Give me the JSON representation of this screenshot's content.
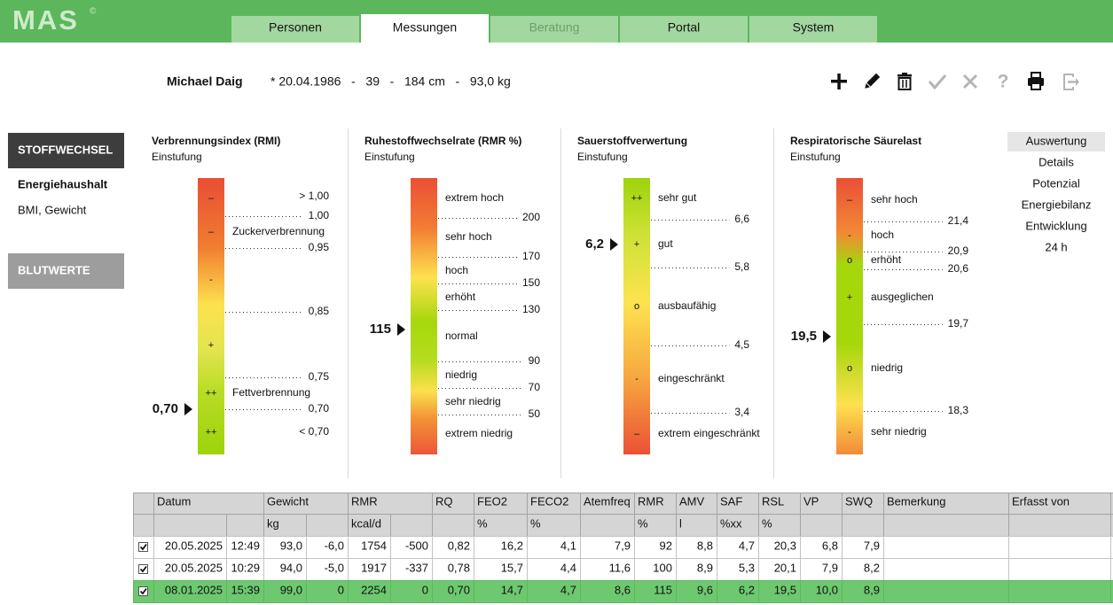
{
  "app": {
    "logo": "MAS",
    "logo_mark": "©",
    "tabs": [
      "Personen",
      "Messungen",
      "Beratung",
      "Portal",
      "System"
    ],
    "active_tab": 1,
    "disabled_tabs": [
      2
    ]
  },
  "patient": {
    "name": "Michael Daig",
    "details": "* 20.04.1986   -   39   -   184 cm   -   93,0 kg"
  },
  "toolbar": {
    "help": "?"
  },
  "sidebar": {
    "sections": [
      {
        "title": "STOFFWECHSEL",
        "items": [
          "Energiehaushalt",
          "BMI, Gewicht"
        ]
      },
      {
        "title": "BLUTWERTE"
      }
    ]
  },
  "subnav": {
    "items": [
      "Auswertung",
      "Details",
      "Potenzial",
      "Energiebilanz",
      "Entwicklung",
      "24 h"
    ],
    "active": 0
  },
  "gauges": [
    {
      "title": "Verbrennungsindex (RMI)",
      "subtitle": "Einstufung",
      "current": "0,70",
      "symbols": [
        "–",
        "–",
        "-",
        "+",
        "++",
        "++"
      ],
      "bands": [
        "Zuckerverbrennung",
        "Fettverbrennung"
      ],
      "thresholds": [
        "1,00",
        "0,95",
        "0,85",
        "0,75",
        "0,70"
      ],
      "limits": [
        "> 1,00",
        "< 0,70"
      ]
    },
    {
      "title": "Ruhestoffwechselrate (RMR %)",
      "subtitle": "Einstufung",
      "current": "115",
      "bands": [
        "extrem hoch",
        "sehr hoch",
        "hoch",
        "erhöht",
        "normal",
        "niedrig",
        "sehr niedrig",
        "extrem niedrig"
      ],
      "thresholds": [
        "200",
        "170",
        "150",
        "130",
        "90",
        "70",
        "50"
      ]
    },
    {
      "title": "Sauerstoffverwertung",
      "subtitle": "Einstufung",
      "current": "6,2",
      "symbols": [
        "++",
        "+",
        "o",
        "-",
        "–"
      ],
      "bands": [
        "sehr gut",
        "gut",
        "ausbaufähig",
        "eingeschränkt",
        "extrem eingeschränkt"
      ],
      "thresholds": [
        "6,6",
        "5,8",
        "4,5",
        "3,4"
      ]
    },
    {
      "title": "Respiratorische Säurelast",
      "subtitle": "Einstufung",
      "current": "19,5",
      "symbols": [
        "–",
        "-",
        "o",
        "+",
        "o",
        "-"
      ],
      "bands": [
        "sehr hoch",
        "hoch",
        "erhöht",
        "ausgeglichen",
        "niedrig",
        "sehr niedrig"
      ],
      "thresholds": [
        "21,4",
        "20,9",
        "20,6",
        "19,7",
        "18,3"
      ]
    }
  ],
  "table": {
    "header": [
      null,
      "Datum",
      null,
      "Gewicht",
      null,
      "RMR",
      null,
      "RQ",
      "FEO2",
      "FECO2",
      "Atemfreq",
      "RMR",
      "AMV",
      "SAF",
      "RSL",
      "VP",
      "SWQ",
      "Bemerkung",
      "Erfasst von"
    ],
    "units": [
      null,
      null,
      null,
      "kg",
      null,
      "kcal/d",
      null,
      null,
      "%",
      "%",
      null,
      "%",
      "l",
      "%xx",
      "%",
      null,
      null,
      null,
      null
    ],
    "rows": [
      [
        "20.05.2025",
        "12:49",
        "93,0",
        "-6,0",
        "1754",
        "-500",
        "0,82",
        "16,2",
        "4,1",
        "7,9",
        "92",
        "8,8",
        "4,7",
        "20,3",
        "6,8",
        "7,9"
      ],
      [
        "20.05.2025",
        "10:29",
        "94,0",
        "-5,0",
        "1917",
        "-337",
        "0,78",
        "15,7",
        "4,4",
        "11,6",
        "100",
        "8,9",
        "5,3",
        "20,1",
        "7,9",
        "8,2"
      ],
      [
        "08.01.2025",
        "15:39",
        "99,0",
        "0",
        "2254",
        "0",
        "0,70",
        "14,7",
        "4,7",
        "8,6",
        "115",
        "9,6",
        "6,2",
        "19,5",
        "10,0",
        "8,9"
      ]
    ],
    "checked": [
      true,
      true,
      true
    ],
    "highlight_row": 2
  }
}
